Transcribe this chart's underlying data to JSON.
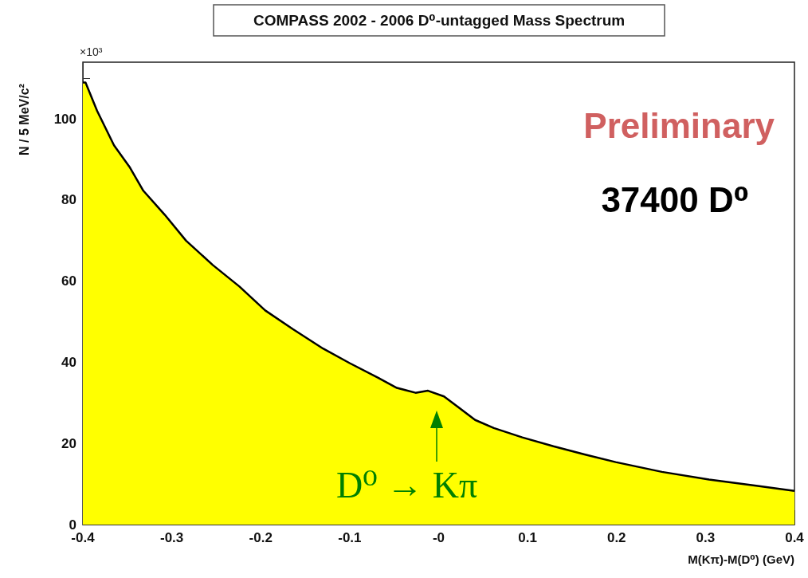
{
  "chart_data": {
    "type": "area",
    "title": "COMPASS 2002 - 2006 D⁰-untagged Mass Spectrum",
    "xlabel": "M(Kπ)-M(D⁰) (GeV)",
    "ylabel": "N / 5 MeV/c²",
    "annotations": [
      "×10³",
      "Preliminary",
      "37400 D⁰",
      "D⁰ → Kπ"
    ],
    "x": [
      -0.4,
      -0.397,
      -0.384,
      -0.365,
      -0.347,
      -0.332,
      -0.308,
      -0.284,
      -0.254,
      -0.224,
      -0.195,
      -0.164,
      -0.13,
      -0.1,
      -0.068,
      -0.047,
      -0.026,
      -0.012,
      0.006,
      0.02,
      0.041,
      0.062,
      0.094,
      0.129,
      0.164,
      0.199,
      0.251,
      0.304,
      0.357,
      0.4
    ],
    "series": [
      {
        "color": "#ffff00",
        "values": [
          109,
          109,
          102,
          93.5,
          88,
          82.3,
          76.4,
          70,
          64,
          58.7,
          52.8,
          48.2,
          43.4,
          39.8,
          36.2,
          33.7,
          32.5,
          33,
          31.6,
          29.3,
          25.8,
          23.8,
          21.5,
          19.3,
          17.3,
          15.4,
          13,
          11.1,
          9.6,
          8.3
        ]
      }
    ],
    "xlim": [
      -0.4,
      0.4
    ],
    "xticks": [
      -0.4,
      -0.3,
      -0.2,
      -0.1,
      {
        "value": 0,
        "label": "-0"
      },
      0.1,
      0.2,
      0.3,
      0.4
    ],
    "ylim": [
      0,
      114
    ],
    "yticks": [
      0,
      20,
      40,
      60,
      80,
      100
    ],
    "grid": false
  }
}
